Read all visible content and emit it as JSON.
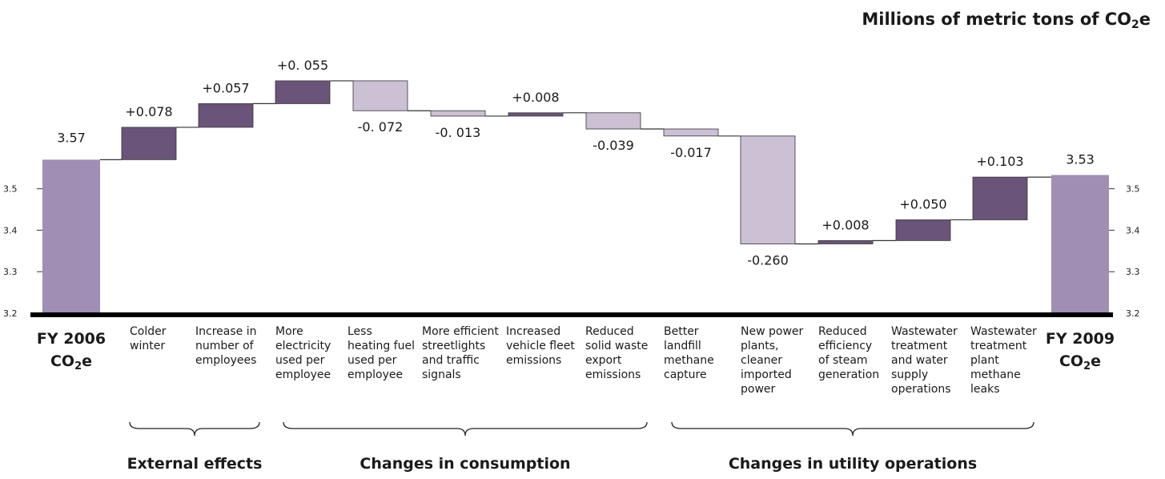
{
  "unit_title": {
    "pre": "Millions of metric tons of CO",
    "sub": "2",
    "post": "e"
  },
  "colors": {
    "endcap": "#a08eb4",
    "increase": "#6a5479",
    "decrease": "#cbc0d4",
    "axis": "#000000",
    "stroke": "#333333"
  },
  "chart_data": {
    "type": "bar",
    "subtype": "waterfall",
    "ylim": [
      3.2,
      3.6
    ],
    "yticks": [
      "3.2",
      "3.3",
      "3.4",
      "3.5"
    ],
    "start": {
      "label_line1": "FY 2006",
      "label_line2_pre": "CO",
      "label_line2_sub": "2",
      "label_line2_post": "e",
      "value": 3.57,
      "value_label": "3.57"
    },
    "end": {
      "label_line1": "FY 2009",
      "label_line2_pre": "CO",
      "label_line2_sub": "2",
      "label_line2_post": "e",
      "value": 3.533,
      "value_label": "3.53"
    },
    "steps": [
      {
        "lines": [
          "Colder",
          "winter"
        ],
        "delta": 0.078,
        "label": "+0.078"
      },
      {
        "lines": [
          "Increase in",
          "number of",
          "employees"
        ],
        "delta": 0.057,
        "label": "+0.057"
      },
      {
        "lines": [
          "More",
          "electricity",
          "used per",
          "employee"
        ],
        "delta": 0.055,
        "label": "+0. 055"
      },
      {
        "lines": [
          "Less",
          "heating fuel",
          "used per",
          "employee"
        ],
        "delta": -0.072,
        "label": "-0. 072"
      },
      {
        "lines": [
          "More efficient",
          "streetlights",
          "and traffic",
          "signals"
        ],
        "delta": -0.013,
        "label": "-0. 013"
      },
      {
        "lines": [
          "Increased",
          "vehicle fleet",
          "emissions"
        ],
        "delta": 0.008,
        "label": "+0.008"
      },
      {
        "lines": [
          "Reduced",
          "solid waste",
          "export",
          "emissions"
        ],
        "delta": -0.039,
        "label": "-0.039"
      },
      {
        "lines": [
          "Better",
          "landfill",
          "methane",
          "capture"
        ],
        "delta": -0.017,
        "label": "-0.017"
      },
      {
        "lines": [
          "New power",
          "plants,",
          "cleaner",
          "imported",
          "power"
        ],
        "delta": -0.26,
        "label": "-0.260"
      },
      {
        "lines": [
          "Reduced",
          "efficiency",
          "of steam",
          "generation"
        ],
        "delta": 0.008,
        "label": "+0.008"
      },
      {
        "lines": [
          "Wastewater",
          "treatment",
          "and water",
          "supply",
          "operations"
        ],
        "delta": 0.05,
        "label": "+0.050"
      },
      {
        "lines": [
          "Wastewater",
          "treatment",
          "plant",
          "methane",
          "leaks"
        ],
        "delta": 0.103,
        "label": "+0.103"
      }
    ],
    "groups": [
      {
        "label": "External effects",
        "from": 0,
        "to": 1
      },
      {
        "label": "Changes in consumption",
        "from": 2,
        "to": 6
      },
      {
        "label": "Changes in utility operations",
        "from": 7,
        "to": 11
      }
    ]
  }
}
